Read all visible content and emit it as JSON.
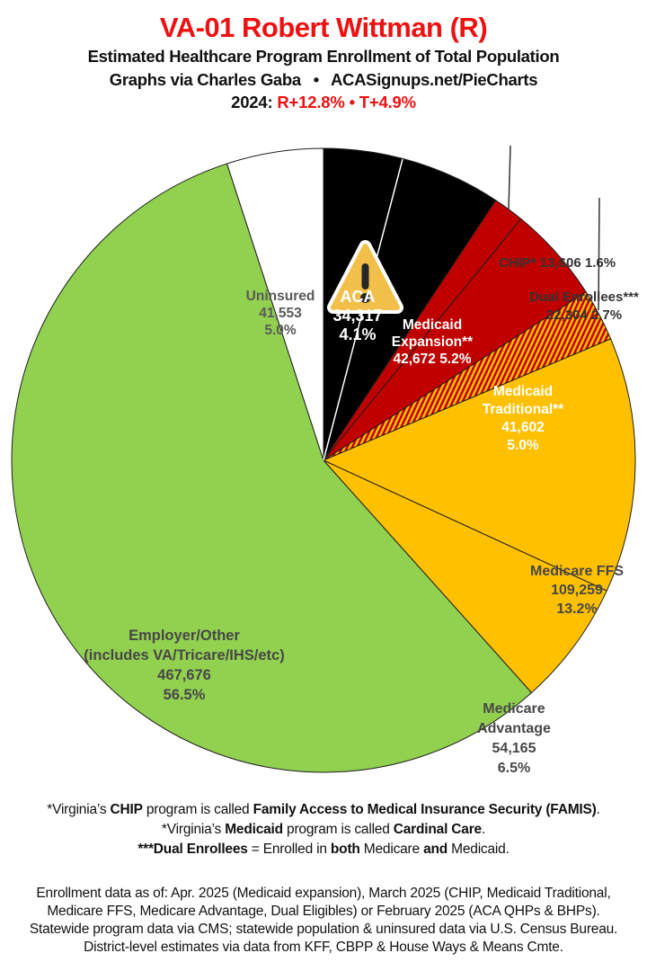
{
  "header": {
    "title": "VA-01 Robert Wittman (R)",
    "subtitle": "Estimated Healthcare Program Enrollment of Total Population",
    "attribution": "Graphs via Charles Gaba  •  ACASignups.net/PieCharts",
    "lean_runs": [
      {
        "t": "2024: ",
        "b": 1
      },
      {
        "t": "R+12.8%",
        "b": 1,
        "red": 1
      },
      {
        "t": " • ",
        "b": 1,
        "red": 1
      },
      {
        "t": "T+4.9%",
        "b": 1,
        "red": 1
      }
    ]
  },
  "chart_data": {
    "type": "pie",
    "title": "VA-01 Robert Wittman (R)",
    "subtitle": "Estimated Healthcare Program Enrollment of Total Population",
    "units": "people enrolled",
    "start_angle_deg": 0,
    "direction": "clockwise",
    "segments": [
      {
        "id": "aca",
        "name": "ACA",
        "value": 34317,
        "pct": 4.1,
        "fill": "#000000",
        "label_color": "#FFFFFF"
      },
      {
        "id": "medicaid_expansion",
        "name": "Medicaid Expansion**",
        "value": 42672,
        "pct": 5.2,
        "fill": "#000000",
        "label_color": "#FFFFFF"
      },
      {
        "id": "chip",
        "name": "CHIP*",
        "value": 13606,
        "pct": 1.6,
        "fill": "#C00000",
        "label_placement": "outside"
      },
      {
        "id": "medicaid_traditional",
        "name": "Medicaid Traditional**",
        "value": 41602,
        "pct": 5.0,
        "fill": "#C00000",
        "label_color": "#FFFFFF"
      },
      {
        "id": "dual_enrollees",
        "name": "Dual Enrollees***",
        "value": 22304,
        "pct": 2.7,
        "fill": "#C00000",
        "hatch": "#FFC000",
        "label_placement": "outside"
      },
      {
        "id": "medicare_ffs",
        "name": "Medicare FFS",
        "value": 109259,
        "pct": 13.2,
        "fill": "#FFC000",
        "label_color": "#474747"
      },
      {
        "id": "medicare_advantage",
        "name": "Medicare Advantage",
        "value": 54165,
        "pct": 6.5,
        "fill": "#FFC000",
        "label_color": "#474747"
      },
      {
        "id": "employer_other",
        "name": "Employer/Other (includes VA/Tricare/IHS/etc)",
        "value": 467676,
        "pct": 56.5,
        "fill": "#92D050",
        "label_color": "#474747"
      },
      {
        "id": "uninsured",
        "name": "Uninsured",
        "value": 41553,
        "pct": 5.0,
        "fill": "#FFFFFF",
        "label_color": "#595959"
      }
    ]
  },
  "slice_labels": {
    "uninsured": [
      "Uninsured",
      "41,553",
      "5.0%"
    ],
    "aca": [
      "ACA",
      "34,317",
      "4.1%"
    ],
    "medicaid_expansion": [
      "Medicaid",
      "Expansion**",
      "42,672 5.2%"
    ],
    "chip": [
      "CHIP* 13,606 1.6%"
    ],
    "medicaid_traditional": [
      "Medicaid",
      "Traditional**",
      "41,602",
      "5.0%"
    ],
    "dual_enrollees": [
      "Dual Enrollees***",
      "22,304 2.7%"
    ],
    "medicare_ffs": [
      "Medicare FFS",
      "109,259",
      "13.2%"
    ],
    "medicare_advantage": [
      "Medicare",
      "Advantage",
      "54,165",
      "6.5%"
    ],
    "employer_other": [
      "Employer/Other",
      "(includes VA/Tricare/IHS/etc)",
      "467,676",
      "56.5%"
    ]
  },
  "footnotes": [
    [
      {
        "t": "*Virginia’s "
      },
      {
        "t": "CHIP",
        "b": 1
      },
      {
        "t": " program is called "
      },
      {
        "t": "Family Access to Medical Insurance Security (FAMIS)",
        "b": 1
      },
      {
        "t": "."
      }
    ],
    [
      {
        "t": "*Virginia’s "
      },
      {
        "t": "Medicaid",
        "b": 1
      },
      {
        "t": " program is called "
      },
      {
        "t": "Cardinal Care",
        "b": 1
      },
      {
        "t": "."
      }
    ],
    [
      {
        "t": "***Dual Enrollees",
        "b": 1
      },
      {
        "t": " = Enrolled in "
      },
      {
        "t": "both",
        "b": 1
      },
      {
        "t": " Medicare "
      },
      {
        "t": "and",
        "b": 1
      },
      {
        "t": " Medicaid."
      }
    ]
  ],
  "source_lines": [
    "Enrollment data as of: Apr. 2025 (Medicaid expansion), March 2025 (CHIP, Medicaid Traditional,",
    "Medicare FFS, Medicare Advantage, Dual Eligibles) or February 2025 (ACA QHPs & BHPs).",
    "Statewide program data via CMS; statewide population & uninsured data via U.S. Census Bureau.",
    "District-level estimates via data from KFF, CBPP & House Ways & Means Cmte."
  ],
  "colors": {
    "title_red": "#ee1111",
    "pie_black": "#000000",
    "pie_red": "#C00000",
    "pie_yellow": "#FFC000",
    "pie_green": "#92D050",
    "pie_white": "#FFFFFF",
    "slice_outline": "#1f1f1f",
    "warning_yellow": "#F2C04A",
    "leader_line": "#333333"
  }
}
